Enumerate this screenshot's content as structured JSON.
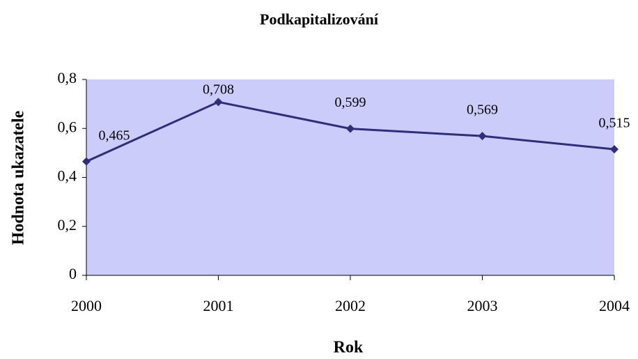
{
  "chart_data": {
    "type": "line",
    "title": "Podkapitalizování",
    "x_label": "Rok",
    "y_label": "Hodnota ukazatele",
    "categories": [
      "2000",
      "2001",
      "2002",
      "2003",
      "2004"
    ],
    "series": [
      {
        "name": "Podkapitalizování",
        "color": "#2e2e7a",
        "values": [
          0.465,
          0.708,
          0.599,
          0.569,
          0.515
        ],
        "value_labels": [
          "0,465",
          "0,708",
          "0,599",
          "0,569",
          "0,515"
        ]
      }
    ],
    "ylim": [
      0,
      0.8
    ],
    "yticks": [
      0,
      {
        "value": 0.2,
        "label": "0,2"
      },
      {
        "value": 0.4,
        "label": "0,4"
      },
      {
        "value": 0.6,
        "label": "0,6"
      },
      {
        "value": 0.8,
        "label": "0,8"
      }
    ],
    "background": "#ccccfa",
    "grid": false
  }
}
